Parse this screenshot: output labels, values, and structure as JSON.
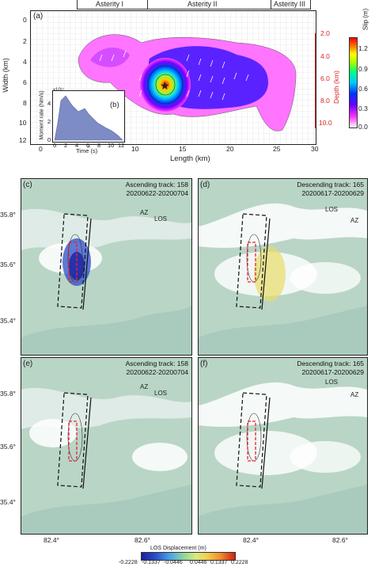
{
  "figure": {
    "asperities": [
      "Asterity I",
      "Asterity II",
      "Asterity III"
    ],
    "panel_a": {
      "letter": "(a)",
      "xlabel": "Length (km)",
      "ylabel": "Width (km)",
      "x_ticks": [
        "0",
        "5",
        "10",
        "15",
        "20",
        "25",
        "30"
      ],
      "y_ticks": [
        "0",
        "2",
        "4",
        "6",
        "8",
        "10",
        "12"
      ],
      "depth_label": "Depth (km)",
      "depth_ticks": [
        "2.0",
        "4.0",
        "6.0",
        "8.0",
        "10.0"
      ],
      "colorbar_label": "Slip (m)",
      "colorbar_ticks": [
        "1.2",
        "0.9",
        "0.6",
        "0.3",
        "0.0"
      ],
      "colorbar_colors": [
        "#ffffff",
        "#ff33ff",
        "#6a00ff",
        "#0033ff",
        "#00c8ff",
        "#00ff80",
        "#a0ff00",
        "#ffff00",
        "#ff8000",
        "#ff0000"
      ]
    },
    "panel_b": {
      "letter": "(b)",
      "ylabel": "Moment rate (Nm/s)",
      "exponent": "x10¹⁷",
      "xlabel": "Time (s)",
      "x_ticks": [
        "0",
        "2",
        "4",
        "6",
        "8",
        "10",
        "12"
      ],
      "y_ticks": [
        "0",
        "2",
        "4"
      ]
    },
    "maps": [
      {
        "letter": "(c)",
        "line1": "Ascending track: 158",
        "line2": "20200622-20200704",
        "az": "AZ",
        "los": "LOS"
      },
      {
        "letter": "(d)",
        "line1": "Descending track: 165",
        "line2": "20200617-20200629",
        "az": "AZ",
        "los": "LOS"
      },
      {
        "letter": "(e)",
        "line1": "Ascending track: 158",
        "line2": "20200622-20200704",
        "az": "AZ",
        "los": "LOS"
      },
      {
        "letter": "(f)",
        "line1": "Descending track: 165",
        "line2": "20200617-20200629",
        "az": "AZ",
        "los": "LOS"
      }
    ],
    "lat_ticks": [
      "35.8°",
      "35.6°",
      "35.4°"
    ],
    "lon_ticks": [
      "82.4°",
      "82.6°"
    ],
    "los_bar": {
      "label": "LOS Displacement (m)",
      "ticks": [
        "-0.2228",
        "-0.1337",
        "-0.0446",
        "0.0446",
        "0.1337",
        "0.2228"
      ]
    }
  }
}
